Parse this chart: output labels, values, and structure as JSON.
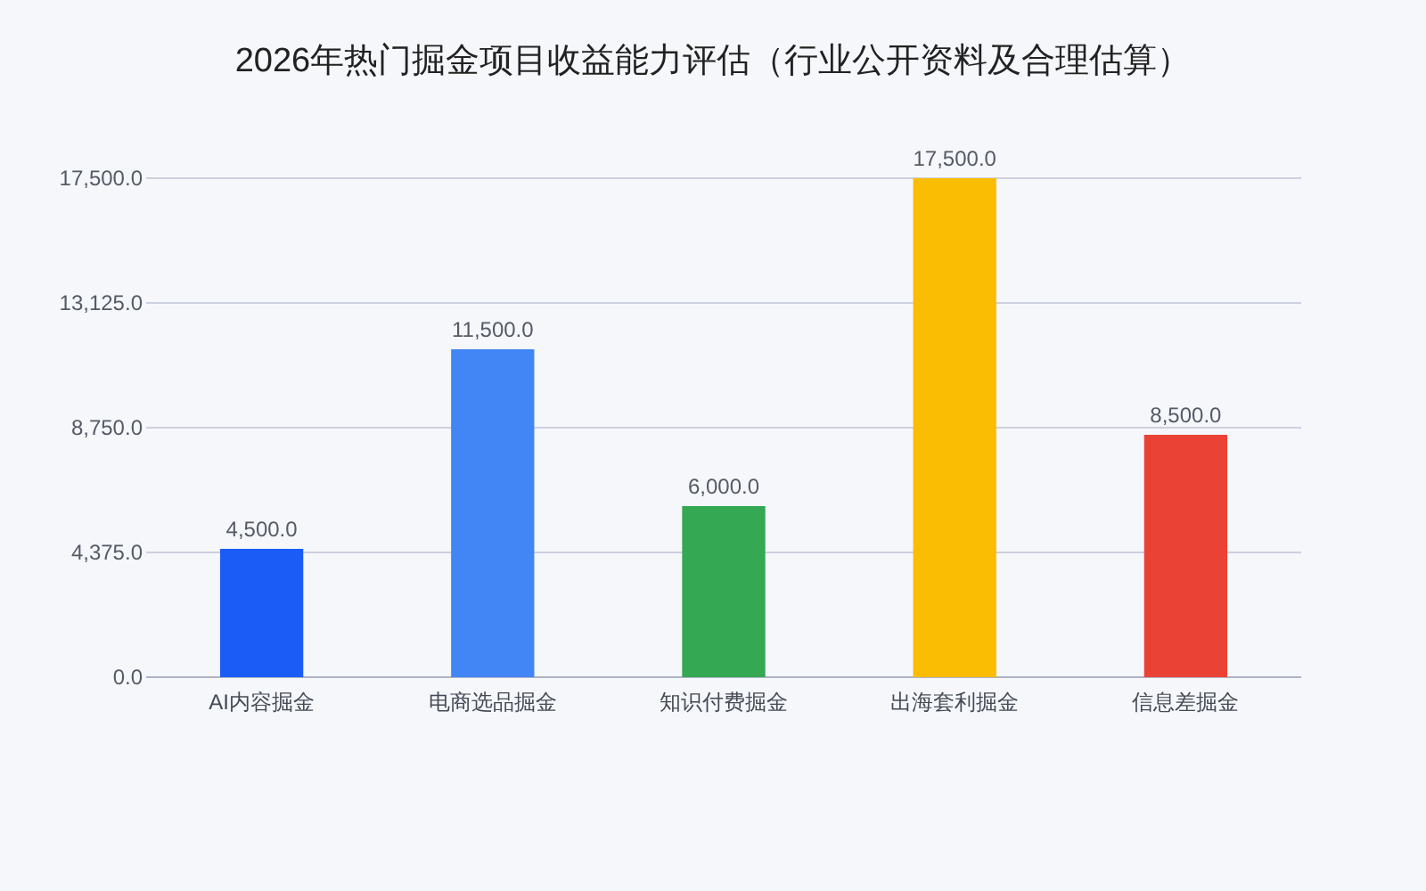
{
  "chart_data": {
    "type": "bar",
    "title": "2026年热门掘金项目收益能力评估（行业公开资料及合理估算）",
    "categories": [
      "AI内容掘金",
      "电商选品掘金",
      "知识付费掘金",
      "出海套利掘金",
      "信息差掘金"
    ],
    "values": [
      4500,
      11500,
      6000,
      17500,
      8500
    ],
    "colors": [
      "#1a5cf5",
      "#4285f4",
      "#34a853",
      "#fbbc04",
      "#ea4335"
    ],
    "value_labels": [
      "4,500.0",
      "11,500.0",
      "6,000.0",
      "17,500.0",
      "8,500.0"
    ],
    "ylim": [
      0,
      17500
    ],
    "yticks": [
      {
        "value": 0,
        "label": "0.0"
      },
      {
        "value": 4375,
        "label": "4,375.0"
      },
      {
        "value": 8750,
        "label": "8,750.0"
      },
      {
        "value": 13125,
        "label": "13,125.0"
      },
      {
        "value": 17500,
        "label": "17,500.0"
      }
    ],
    "grid": "y"
  }
}
